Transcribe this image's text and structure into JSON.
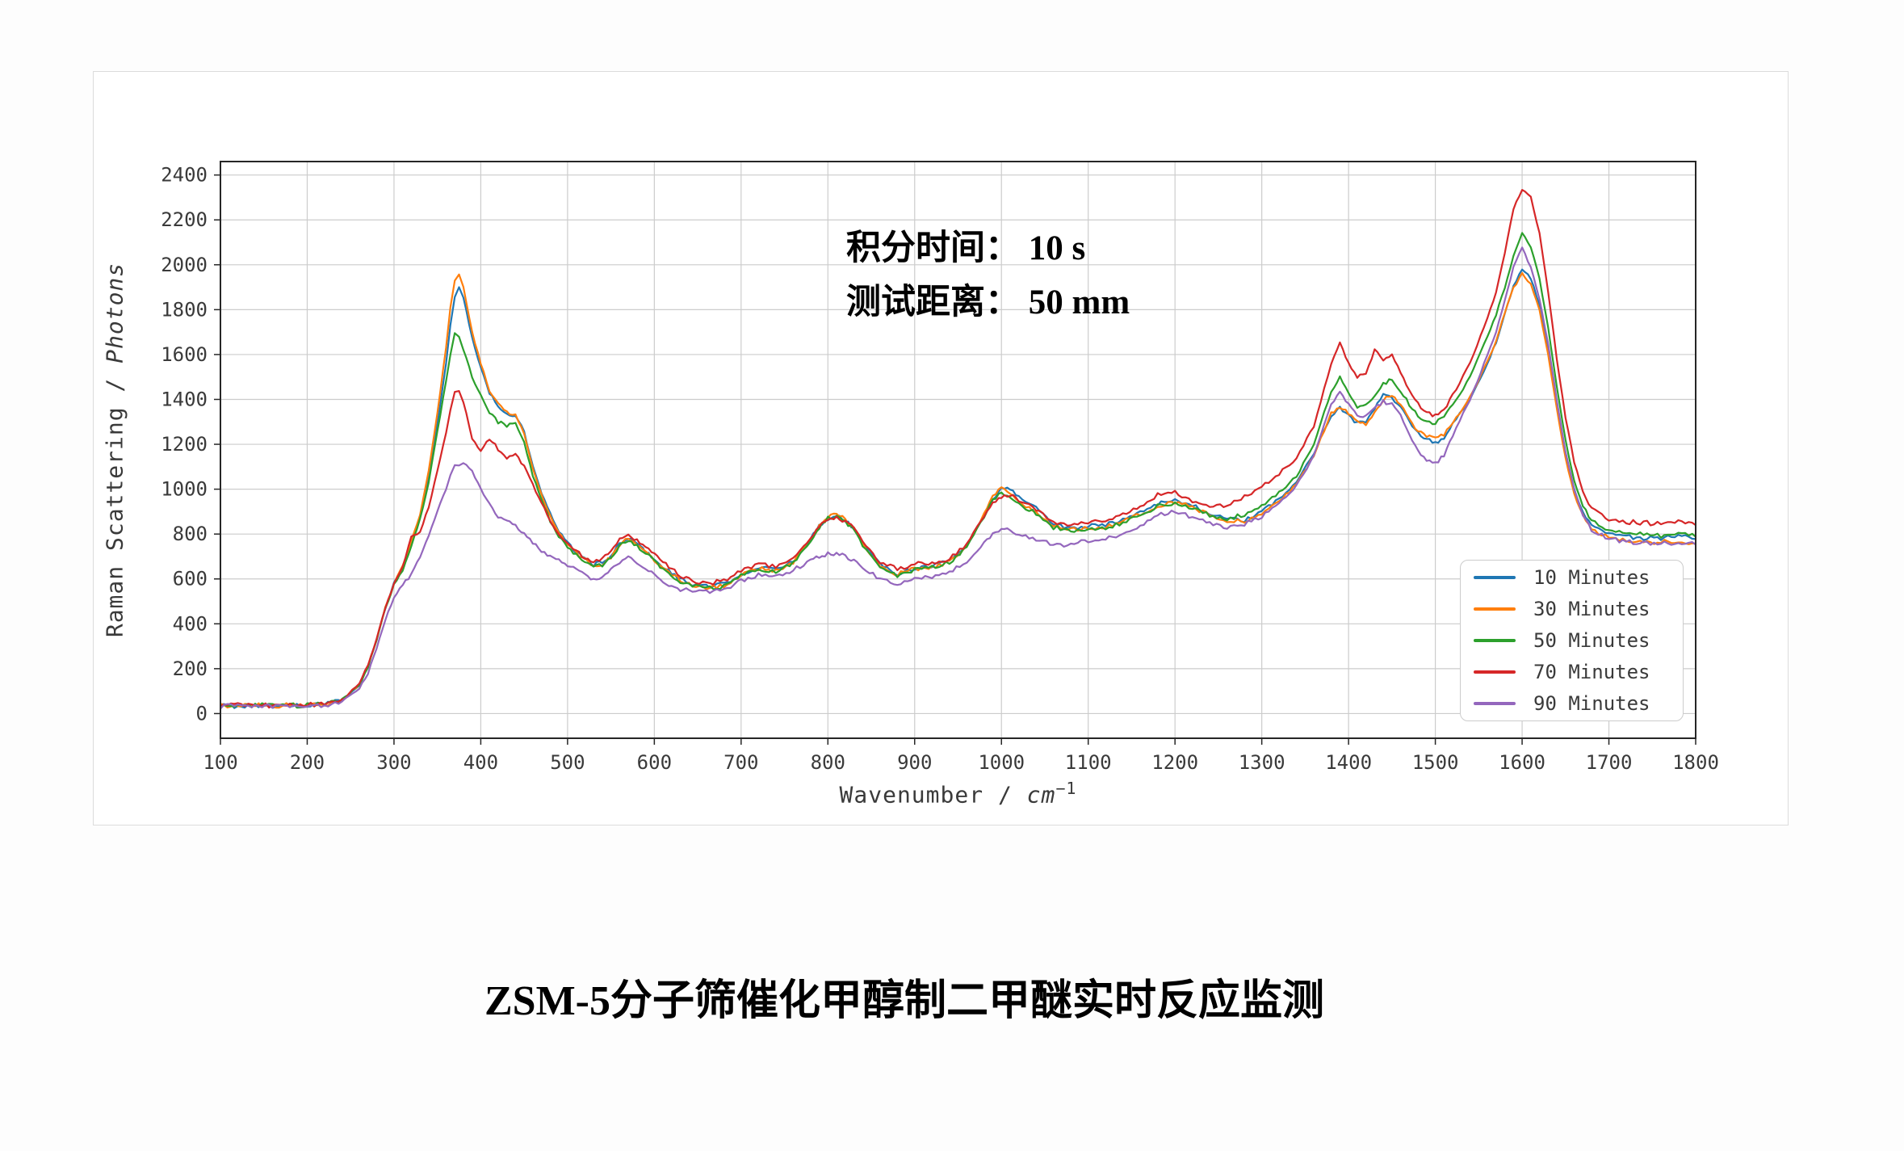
{
  "page": {
    "title": "ZSM-5分子筛催化甲醇制二甲醚实时反应监测"
  },
  "annotation": {
    "line1": "积分时间： 10 s",
    "line2": "测试距离： 50 mm"
  },
  "chart_data": {
    "type": "line",
    "title": "",
    "xlabel_prefix": "Wavenumber / ",
    "xlabel_unit": "cm",
    "xlabel_exponent": "−1",
    "ylabel_prefix": "Raman Scattering / ",
    "ylabel_unit": "Photons",
    "xlim": [
      100,
      1800
    ],
    "ylim": [
      -110,
      2460
    ],
    "grid": true,
    "grid_color": "#cccccc",
    "spine_color": "#262626",
    "legend_position": "lower right",
    "x_ticks": [
      100,
      200,
      300,
      400,
      500,
      600,
      700,
      800,
      900,
      1000,
      1100,
      1200,
      1300,
      1400,
      1500,
      1600,
      1700,
      1800
    ],
    "y_ticks": [
      0,
      200,
      400,
      600,
      800,
      1000,
      1200,
      1400,
      1600,
      1800,
      2000,
      2200,
      2400
    ],
    "x": [
      100,
      140,
      180,
      220,
      240,
      260,
      270,
      280,
      290,
      300,
      310,
      320,
      330,
      340,
      350,
      360,
      365,
      370,
      375,
      380,
      390,
      400,
      410,
      420,
      430,
      440,
      450,
      460,
      470,
      480,
      490,
      500,
      510,
      520,
      530,
      540,
      550,
      560,
      570,
      580,
      590,
      600,
      610,
      620,
      630,
      640,
      660,
      680,
      700,
      720,
      740,
      760,
      780,
      790,
      800,
      810,
      820,
      830,
      840,
      860,
      880,
      900,
      920,
      940,
      960,
      980,
      990,
      1000,
      1010,
      1020,
      1040,
      1060,
      1080,
      1100,
      1120,
      1140,
      1160,
      1180,
      1200,
      1220,
      1240,
      1260,
      1280,
      1300,
      1320,
      1340,
      1360,
      1380,
      1390,
      1400,
      1410,
      1420,
      1430,
      1440,
      1450,
      1460,
      1470,
      1480,
      1490,
      1500,
      1510,
      1520,
      1540,
      1560,
      1570,
      1580,
      1590,
      1600,
      1610,
      1620,
      1630,
      1640,
      1650,
      1660,
      1670,
      1680,
      1700,
      1720,
      1740,
      1760,
      1780,
      1800
    ],
    "series": [
      {
        "name": "10 Minutes",
        "color": "#1f77b4",
        "values": [
          35,
          35,
          36,
          40,
          60,
          130,
          210,
          330,
          470,
          580,
          655,
          765,
          880,
          1055,
          1290,
          1560,
          1730,
          1860,
          1905,
          1855,
          1675,
          1540,
          1430,
          1370,
          1340,
          1330,
          1255,
          1100,
          985,
          890,
          810,
          760,
          720,
          690,
          665,
          670,
          700,
          758,
          785,
          755,
          722,
          690,
          655,
          625,
          600,
          580,
          565,
          575,
          622,
          650,
          640,
          678,
          778,
          838,
          868,
          885,
          862,
          825,
          762,
          665,
          625,
          648,
          660,
          680,
          748,
          878,
          950,
          1005,
          1000,
          968,
          918,
          845,
          825,
          835,
          840,
          865,
          900,
          938,
          950,
          928,
          892,
          865,
          860,
          898,
          958,
          1030,
          1160,
          1330,
          1365,
          1330,
          1292,
          1300,
          1358,
          1425,
          1400,
          1368,
          1300,
          1255,
          1220,
          1205,
          1230,
          1290,
          1400,
          1560,
          1655,
          1780,
          1905,
          1980,
          1940,
          1820,
          1620,
          1380,
          1160,
          1000,
          898,
          840,
          800,
          790,
          782,
          780,
          790,
          778
        ]
      },
      {
        "name": "30 Minutes",
        "color": "#ff7f0e",
        "values": [
          35,
          35,
          36,
          40,
          60,
          132,
          212,
          332,
          472,
          582,
          658,
          768,
          885,
          1080,
          1340,
          1630,
          1810,
          1935,
          1960,
          1900,
          1700,
          1560,
          1440,
          1380,
          1345,
          1335,
          1250,
          1092,
          978,
          882,
          805,
          752,
          715,
          685,
          660,
          665,
          695,
          752,
          780,
          750,
          718,
          685,
          650,
          620,
          595,
          575,
          560,
          570,
          618,
          645,
          635,
          674,
          774,
          833,
          878,
          890,
          864,
          828,
          755,
          660,
          620,
          644,
          655,
          675,
          744,
          888,
          968,
          1010,
          985,
          940,
          898,
          835,
          818,
          828,
          833,
          855,
          888,
          928,
          944,
          918,
          884,
          858,
          854,
          888,
          948,
          1018,
          1148,
          1338,
          1368,
          1338,
          1298,
          1288,
          1338,
          1398,
          1415,
          1378,
          1308,
          1258,
          1233,
          1223,
          1243,
          1298,
          1408,
          1568,
          1660,
          1788,
          1898,
          1958,
          1918,
          1798,
          1598,
          1358,
          1138,
          978,
          882,
          823,
          783,
          773,
          765,
          763,
          770,
          758
        ]
      },
      {
        "name": "50 Minutes",
        "color": "#2ca02c",
        "values": [
          35,
          35,
          36,
          40,
          58,
          128,
          208,
          328,
          468,
          572,
          640,
          748,
          868,
          1030,
          1258,
          1480,
          1600,
          1700,
          1680,
          1622,
          1502,
          1420,
          1342,
          1300,
          1282,
          1290,
          1208,
          1060,
          958,
          858,
          788,
          744,
          705,
          676,
          655,
          660,
          690,
          748,
          775,
          745,
          714,
          680,
          645,
          615,
          590,
          570,
          556,
          566,
          614,
          640,
          631,
          670,
          770,
          828,
          872,
          878,
          854,
          820,
          748,
          656,
          616,
          640,
          651,
          671,
          739,
          878,
          952,
          980,
          970,
          934,
          893,
          831,
          816,
          826,
          830,
          849,
          884,
          924,
          938,
          914,
          884,
          868,
          888,
          928,
          988,
          1058,
          1198,
          1438,
          1498,
          1428,
          1364,
          1378,
          1418,
          1468,
          1488,
          1438,
          1378,
          1328,
          1303,
          1298,
          1318,
          1378,
          1498,
          1678,
          1778,
          1898,
          2040,
          2138,
          2078,
          1938,
          1718,
          1458,
          1218,
          1038,
          928,
          858,
          818,
          808,
          798,
          793,
          803,
          788
        ]
      },
      {
        "name": "70 Minutes",
        "color": "#d62728",
        "values": [
          36,
          36,
          37,
          41,
          60,
          135,
          215,
          335,
          470,
          575,
          655,
          790,
          812,
          920,
          1080,
          1250,
          1350,
          1430,
          1440,
          1388,
          1230,
          1170,
          1225,
          1180,
          1142,
          1160,
          1100,
          1020,
          940,
          862,
          800,
          755,
          722,
          696,
          680,
          690,
          720,
          778,
          800,
          770,
          740,
          708,
          675,
          645,
          615,
          595,
          580,
          590,
          638,
          665,
          655,
          690,
          780,
          840,
          868,
          875,
          856,
          826,
          766,
          675,
          645,
          665,
          670,
          690,
          755,
          880,
          945,
          965,
          975,
          950,
          910,
          855,
          840,
          850,
          860,
          885,
          925,
          975,
          985,
          950,
          930,
          925,
          965,
          1010,
          1070,
          1140,
          1280,
          1560,
          1650,
          1560,
          1500,
          1510,
          1620,
          1580,
          1600,
          1520,
          1440,
          1380,
          1340,
          1325,
          1350,
          1420,
          1560,
          1760,
          1880,
          2050,
          2250,
          2330,
          2300,
          2140,
          1880,
          1580,
          1320,
          1120,
          990,
          910,
          865,
          855,
          850,
          845,
          860,
          840
        ]
      },
      {
        "name": "90 Minutes",
        "color": "#9467bd",
        "values": [
          32,
          32,
          33,
          36,
          52,
          110,
          180,
          290,
          420,
          515,
          575,
          618,
          700,
          790,
          900,
          1000,
          1060,
          1100,
          1115,
          1120,
          1080,
          1000,
          930,
          880,
          858,
          840,
          800,
          760,
          725,
          700,
          680,
          662,
          640,
          615,
          600,
          610,
          640,
          678,
          695,
          670,
          645,
          618,
          590,
          570,
          555,
          548,
          542,
          552,
          590,
          615,
          608,
          640,
          680,
          698,
          710,
          712,
          700,
          680,
          650,
          600,
          580,
          600,
          610,
          630,
          678,
          760,
          800,
          825,
          818,
          798,
          775,
          755,
          750,
          773,
          778,
          798,
          838,
          885,
          905,
          875,
          845,
          830,
          845,
          878,
          938,
          1018,
          1148,
          1378,
          1428,
          1378,
          1330,
          1328,
          1358,
          1390,
          1378,
          1328,
          1240,
          1168,
          1125,
          1115,
          1150,
          1240,
          1398,
          1598,
          1700,
          1840,
          1988,
          2078,
          1988,
          1848,
          1648,
          1398,
          1168,
          998,
          888,
          818,
          778,
          768,
          760,
          757,
          764,
          753
        ]
      }
    ]
  }
}
